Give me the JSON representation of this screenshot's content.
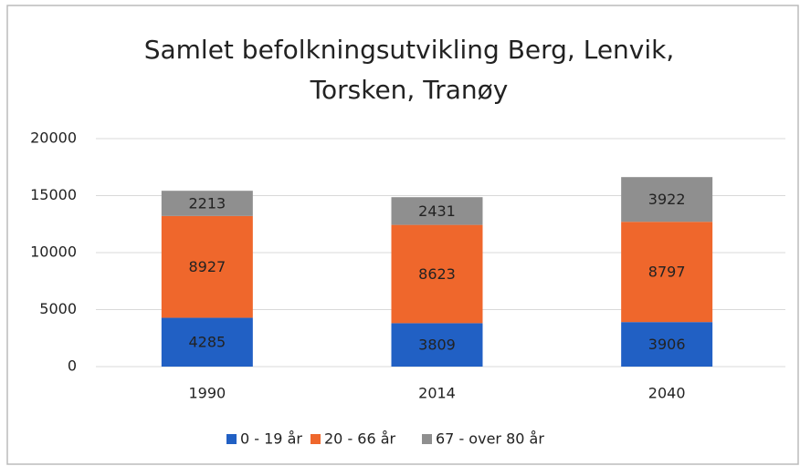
{
  "chart_data": {
    "type": "stacked_bar",
    "title": [
      "Samlet befolkningsutvikling Berg, Lenvik,",
      "Torsken, Tranøy"
    ],
    "categories": [
      "1990",
      "2014",
      "2040"
    ],
    "series": [
      {
        "name": "0 - 19 år",
        "color": "#2160c4",
        "values": [
          4285,
          3809,
          3906
        ]
      },
      {
        "name": "20 - 66 år",
        "color": "#ef672c",
        "values": [
          8927,
          8623,
          8797
        ]
      },
      {
        "name": "67 - over 80 år",
        "color": "#8f8f8f",
        "values": [
          2213,
          2431,
          3922
        ]
      }
    ],
    "ylim": [
      0,
      20000
    ],
    "yticks": [
      0,
      5000,
      10000,
      15000,
      20000
    ],
    "grid": true,
    "legend": "bottom"
  }
}
